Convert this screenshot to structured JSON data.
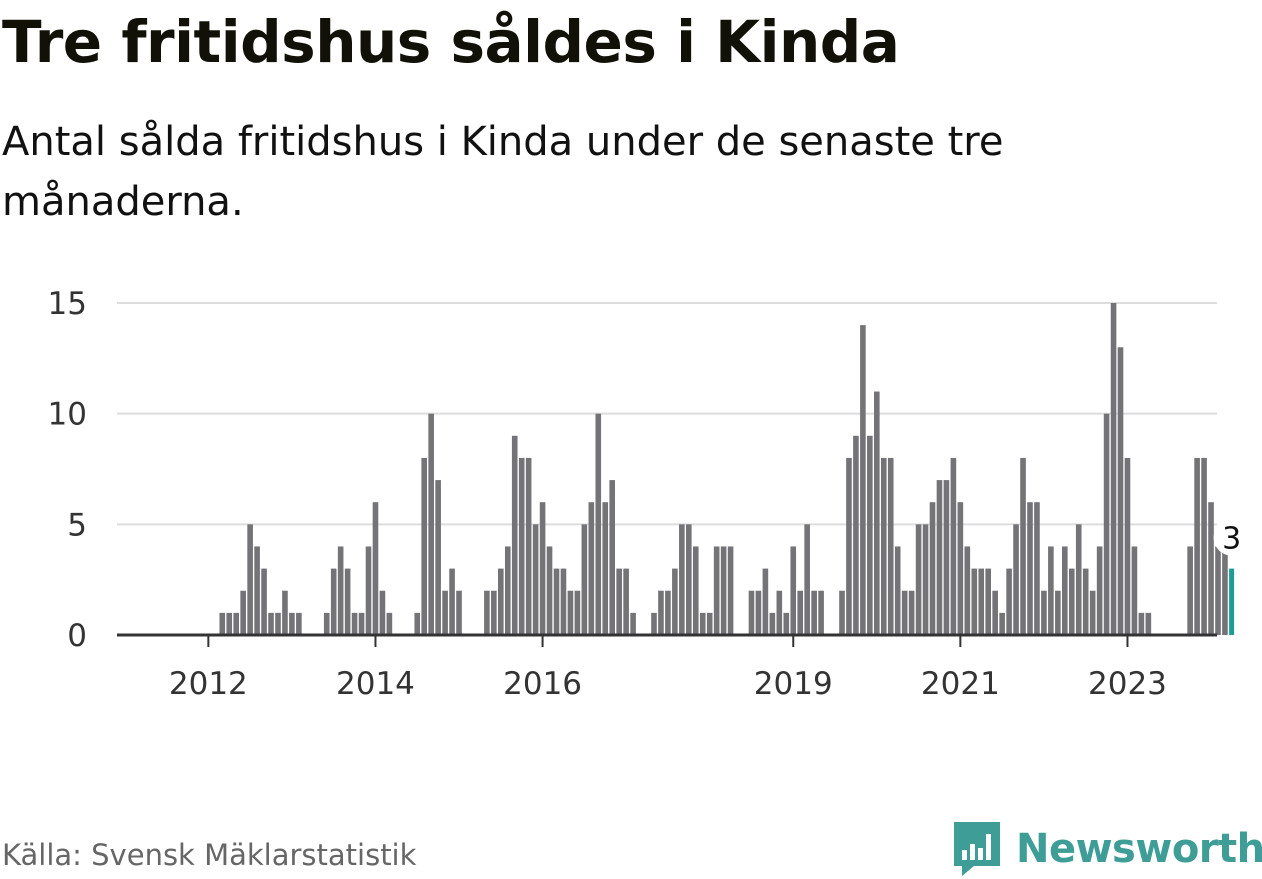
{
  "title": "Tre fritidshus såldes i Kinda",
  "subtitle": "Antal sålda fritidshus i Kinda under de senaste tre månaderna.",
  "source": "Källa: Svensk Mäklarstatistik",
  "brand": {
    "name": "Newsworthy",
    "icon": "bar-chart-speech-bubble-icon",
    "color": "#3e9d96"
  },
  "colors": {
    "bar": "#737378",
    "highlight": "#1a9e96",
    "grid": "#dddddd",
    "axis": "#333333"
  },
  "chart_data": {
    "type": "bar",
    "x_start": "2011-01",
    "frequency": "monthly",
    "values": [
      0,
      0,
      0,
      0,
      0,
      0,
      0,
      0,
      0,
      0,
      0,
      0,
      0,
      0,
      1,
      1,
      1,
      2,
      5,
      4,
      3,
      1,
      1,
      2,
      1,
      1,
      0,
      0,
      0,
      1,
      3,
      4,
      3,
      1,
      1,
      4,
      6,
      2,
      1,
      0,
      0,
      0,
      1,
      8,
      10,
      7,
      2,
      3,
      2,
      0,
      0,
      0,
      2,
      2,
      3,
      4,
      9,
      8,
      8,
      5,
      6,
      4,
      3,
      3,
      2,
      2,
      5,
      6,
      10,
      6,
      7,
      3,
      3,
      1,
      0,
      0,
      1,
      2,
      2,
      3,
      5,
      5,
      4,
      1,
      1,
      4,
      4,
      4,
      0,
      0,
      2,
      2,
      3,
      1,
      2,
      1,
      4,
      2,
      5,
      2,
      2,
      0,
      0,
      2,
      8,
      9,
      14,
      9,
      11,
      8,
      8,
      4,
      2,
      2,
      5,
      5,
      6,
      7,
      7,
      8,
      6,
      4,
      3,
      3,
      3,
      2,
      1,
      3,
      5,
      8,
      6,
      6,
      2,
      4,
      2,
      4,
      3,
      5,
      3,
      2,
      4,
      10,
      15,
      13,
      8,
      4,
      1,
      1,
      0,
      0,
      0,
      0,
      0,
      4,
      8,
      8,
      6,
      4,
      4,
      3
    ],
    "highlight_last": true,
    "last_value_label": "3",
    "xticks": [
      {
        "label": "2012",
        "date": "2012-01"
      },
      {
        "label": "2014",
        "date": "2014-01"
      },
      {
        "label": "2016",
        "date": "2016-01"
      },
      {
        "label": "2019",
        "date": "2019-01"
      },
      {
        "label": "2021",
        "date": "2021-01"
      },
      {
        "label": "2023",
        "date": "2023-01"
      }
    ],
    "yticks": [
      0,
      5,
      10,
      15
    ],
    "ylim": [
      0,
      15
    ],
    "grid": true,
    "legend": "none",
    "xlabel": "",
    "ylabel": ""
  }
}
